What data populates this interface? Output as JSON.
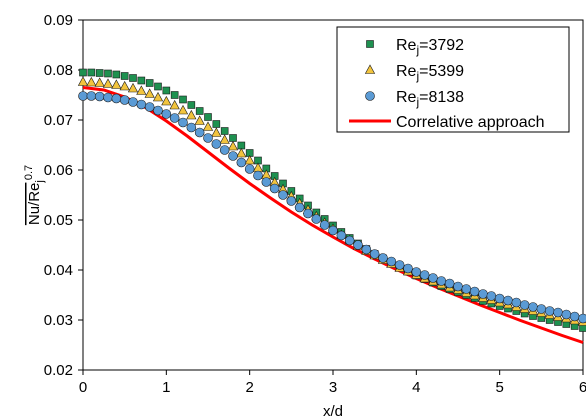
{
  "chart_data": {
    "type": "scatter",
    "xlabel": "x/d",
    "ylabel": {
      "main": "Nu/Re",
      "sub": "j",
      "sup": "0.7"
    },
    "xlim": [
      0,
      6
    ],
    "ylim": [
      0.02,
      0.09
    ],
    "xticks": [
      0,
      1,
      2,
      3,
      4,
      5,
      6
    ],
    "yticks": [
      0.02,
      0.03,
      0.04,
      0.05,
      0.06,
      0.07,
      0.08,
      0.09
    ],
    "ytick_labels": [
      "0.02",
      "0.03",
      "0.04",
      "0.05",
      "0.06",
      "0.07",
      "0.08",
      "0.09"
    ],
    "grid": false,
    "legend_position": "top-right",
    "legend_entries": [
      {
        "label_main": "Re",
        "label_sub": "j",
        "label_rest": "=3792"
      },
      {
        "label_main": "Re",
        "label_sub": "j",
        "label_rest": "=5399"
      },
      {
        "label_main": "Re",
        "label_sub": "j",
        "label_rest": "=8138"
      },
      {
        "label_main": "Correlative approach",
        "label_sub": "",
        "label_rest": ""
      }
    ],
    "series": [
      {
        "name": "Rej=3792",
        "marker": "square",
        "color": "#1e9150",
        "x": [
          0.0,
          0.1,
          0.2,
          0.3,
          0.4,
          0.5,
          0.6,
          0.7,
          0.8,
          0.9,
          1.0,
          1.1,
          1.2,
          1.3,
          1.4,
          1.5,
          1.6,
          1.7,
          1.8,
          1.9,
          2.0,
          2.1,
          2.2,
          2.3,
          2.4,
          2.5,
          2.6,
          2.7,
          2.8,
          2.9,
          3.0,
          3.1,
          3.2,
          3.3,
          3.4,
          3.5,
          3.6,
          3.7,
          3.8,
          3.9,
          4.0,
          4.1,
          4.2,
          4.3,
          4.4,
          4.5,
          4.6,
          4.7,
          4.8,
          4.9,
          5.0,
          5.1,
          5.2,
          5.3,
          5.4,
          5.5,
          5.6,
          5.7,
          5.8,
          5.9,
          6.0
        ],
        "y": [
          0.0795,
          0.0795,
          0.0794,
          0.0793,
          0.0791,
          0.0788,
          0.0784,
          0.0779,
          0.0774,
          0.0767,
          0.0759,
          0.075,
          0.0741,
          0.073,
          0.0718,
          0.0706,
          0.0692,
          0.0678,
          0.0664,
          0.0649,
          0.0634,
          0.0619,
          0.0603,
          0.0588,
          0.0573,
          0.0558,
          0.0543,
          0.0529,
          0.0515,
          0.0502,
          0.0489,
          0.0476,
          0.0464,
          0.0453,
          0.0442,
          0.0432,
          0.0423,
          0.0414,
          0.0405,
          0.0397,
          0.0389,
          0.0382,
          0.0375,
          0.0368,
          0.0362,
          0.0356,
          0.035,
          0.0344,
          0.0338,
          0.0333,
          0.0328,
          0.0323,
          0.0318,
          0.0313,
          0.0308,
          0.0304,
          0.03,
          0.0296,
          0.0292,
          0.0288,
          0.0284
        ]
      },
      {
        "name": "Rej=5399",
        "marker": "triangle",
        "color": "#f2c43d",
        "x": [
          0.0,
          0.1,
          0.2,
          0.3,
          0.4,
          0.5,
          0.6,
          0.7,
          0.8,
          0.9,
          1.0,
          1.1,
          1.2,
          1.3,
          1.4,
          1.5,
          1.6,
          1.7,
          1.8,
          1.9,
          2.0,
          2.1,
          2.2,
          2.3,
          2.4,
          2.5,
          2.6,
          2.7,
          2.8,
          2.9,
          3.0,
          3.1,
          3.2,
          3.3,
          3.4,
          3.5,
          3.6,
          3.7,
          3.8,
          3.9,
          4.0,
          4.1,
          4.2,
          4.3,
          4.4,
          4.5,
          4.6,
          4.7,
          4.8,
          4.9,
          5.0,
          5.1,
          5.2,
          5.3,
          5.4,
          5.5,
          5.6,
          5.7,
          5.8,
          5.9,
          6.0
        ],
        "y": [
          0.0776,
          0.0775,
          0.0774,
          0.0772,
          0.077,
          0.0767,
          0.0763,
          0.0758,
          0.0752,
          0.0745,
          0.0737,
          0.0729,
          0.0719,
          0.0709,
          0.0698,
          0.0686,
          0.0674,
          0.066,
          0.0647,
          0.0633,
          0.0619,
          0.0604,
          0.059,
          0.0575,
          0.0561,
          0.0547,
          0.0533,
          0.052,
          0.0507,
          0.0494,
          0.0482,
          0.047,
          0.0459,
          0.0448,
          0.0438,
          0.0429,
          0.042,
          0.0412,
          0.0404,
          0.0397,
          0.039,
          0.0383,
          0.0377,
          0.0371,
          0.0365,
          0.036,
          0.0354,
          0.0349,
          0.0344,
          0.034,
          0.0335,
          0.0331,
          0.0326,
          0.0322,
          0.0318,
          0.0314,
          0.031,
          0.0306,
          0.0303,
          0.0299,
          0.0296
        ]
      },
      {
        "name": "Rej=8138",
        "marker": "circle",
        "color": "#5b9bd5",
        "x": [
          0.0,
          0.1,
          0.2,
          0.3,
          0.4,
          0.5,
          0.6,
          0.7,
          0.8,
          0.9,
          1.0,
          1.1,
          1.2,
          1.3,
          1.4,
          1.5,
          1.6,
          1.7,
          1.8,
          1.9,
          2.0,
          2.1,
          2.2,
          2.3,
          2.4,
          2.5,
          2.6,
          2.7,
          2.8,
          2.9,
          3.0,
          3.1,
          3.2,
          3.3,
          3.4,
          3.5,
          3.6,
          3.7,
          3.8,
          3.9,
          4.0,
          4.1,
          4.2,
          4.3,
          4.4,
          4.5,
          4.6,
          4.7,
          4.8,
          4.9,
          5.0,
          5.1,
          5.2,
          5.3,
          5.4,
          5.5,
          5.6,
          5.7,
          5.8,
          5.9,
          6.0
        ],
        "y": [
          0.0748,
          0.0748,
          0.0747,
          0.0745,
          0.0743,
          0.074,
          0.0736,
          0.0731,
          0.0726,
          0.0719,
          0.0712,
          0.0704,
          0.0695,
          0.0685,
          0.0675,
          0.0664,
          0.0652,
          0.064,
          0.0628,
          0.0615,
          0.0602,
          0.0589,
          0.0576,
          0.0563,
          0.055,
          0.0538,
          0.0525,
          0.0513,
          0.0502,
          0.049,
          0.0479,
          0.0469,
          0.0459,
          0.045,
          0.0441,
          0.0432,
          0.0424,
          0.0417,
          0.041,
          0.0403,
          0.0396,
          0.039,
          0.0384,
          0.0378,
          0.0373,
          0.0367,
          0.0362,
          0.0357,
          0.0352,
          0.0348,
          0.0343,
          0.0339,
          0.0335,
          0.033,
          0.0326,
          0.0322,
          0.0318,
          0.0315,
          0.0311,
          0.0307,
          0.0303
        ]
      },
      {
        "name": "Correlative approach",
        "marker": "line",
        "color": "#ff0000",
        "x": [
          0.0,
          0.25,
          0.5,
          0.75,
          1.0,
          1.25,
          1.5,
          1.75,
          2.0,
          2.25,
          2.5,
          2.75,
          3.0,
          3.25,
          3.5,
          3.75,
          4.0,
          4.25,
          4.5,
          4.75,
          5.0,
          5.25,
          5.5,
          5.75,
          6.0
        ],
        "y": [
          0.0765,
          0.076,
          0.0746,
          0.0725,
          0.0698,
          0.0668,
          0.0636,
          0.0604,
          0.0573,
          0.0544,
          0.0516,
          0.049,
          0.0466,
          0.0443,
          0.0422,
          0.0402,
          0.0383,
          0.0365,
          0.0348,
          0.0331,
          0.0315,
          0.0299,
          0.0284,
          0.0269,
          0.0255
        ]
      }
    ]
  }
}
